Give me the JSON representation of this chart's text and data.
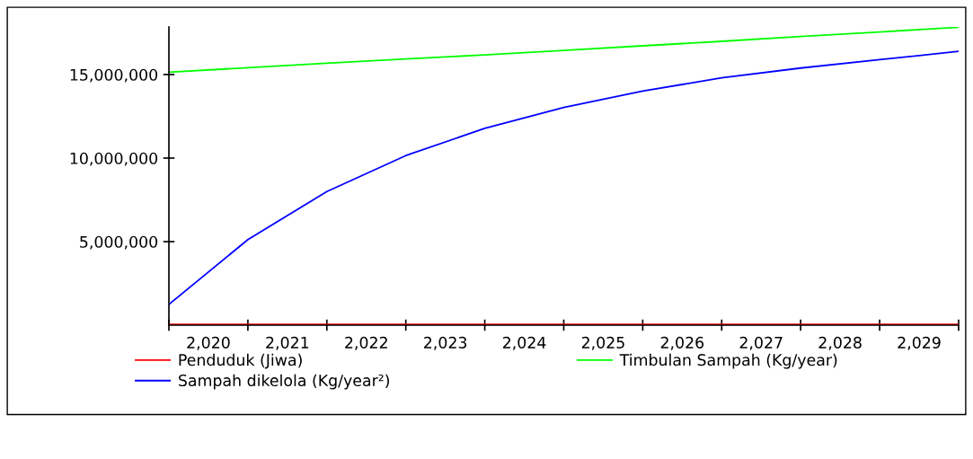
{
  "chart_data": {
    "type": "line",
    "x": [
      2019.5,
      2020.5,
      2021.5,
      2022.5,
      2023.5,
      2024.5,
      2025.5,
      2026.5,
      2027.5,
      2028.5,
      2029.5
    ],
    "series": [
      {
        "name": "Penduduk (Jiwa)",
        "color": "#ff0000",
        "values": [
          50000,
          50000,
          50000,
          50000,
          50000,
          50000,
          50000,
          50000,
          50000,
          50000,
          50000
        ]
      },
      {
        "name": "Timbulan Sampah (Kg/year)",
        "color": "#00ff00",
        "values": [
          15140000,
          15410000,
          15680000,
          15930000,
          16180000,
          16450000,
          16720000,
          16990000,
          17280000,
          17550000,
          17830000
        ]
      },
      {
        "name": "Sampah dikelola (Kg/year²)",
        "color": "#0000ff",
        "values": [
          1240000,
          5120000,
          8000000,
          10150000,
          11780000,
          13030000,
          14010000,
          14800000,
          15390000,
          15890000,
          16390000
        ]
      }
    ],
    "xlim": [
      2019.5,
      2029.5
    ],
    "xticks": [
      {
        "value": 2019.5,
        "label": null
      },
      {
        "value": 2020,
        "label": "2,020"
      },
      {
        "value": 2020.5,
        "label": null
      },
      {
        "value": 2021,
        "label": "2,021"
      },
      {
        "value": 2021.5,
        "label": null
      },
      {
        "value": 2022,
        "label": "2,022"
      },
      {
        "value": 2022.5,
        "label": null
      },
      {
        "value": 2023,
        "label": "2,023"
      },
      {
        "value": 2023.5,
        "label": null
      },
      {
        "value": 2024,
        "label": "2,024"
      },
      {
        "value": 2024.5,
        "label": null
      },
      {
        "value": 2025,
        "label": "2,025"
      },
      {
        "value": 2025.5,
        "label": null
      },
      {
        "value": 2026,
        "label": "2,026"
      },
      {
        "value": 2026.5,
        "label": null
      },
      {
        "value": 2027,
        "label": "2,027"
      },
      {
        "value": 2027.5,
        "label": null
      },
      {
        "value": 2028,
        "label": "2,028"
      },
      {
        "value": 2028.5,
        "label": null
      },
      {
        "value": 2029,
        "label": "2,029"
      },
      {
        "value": 2029.5,
        "label": null
      }
    ],
    "ylim": [
      0,
      17850000
    ],
    "yticks": [
      {
        "value": 5000000,
        "label": "5,000,000"
      },
      {
        "value": 10000000,
        "label": "10,000,000"
      },
      {
        "value": 15000000,
        "label": "15,000,000"
      }
    ],
    "grid": false,
    "legend": "bottom",
    "marker": "none",
    "line_style": "solid"
  }
}
